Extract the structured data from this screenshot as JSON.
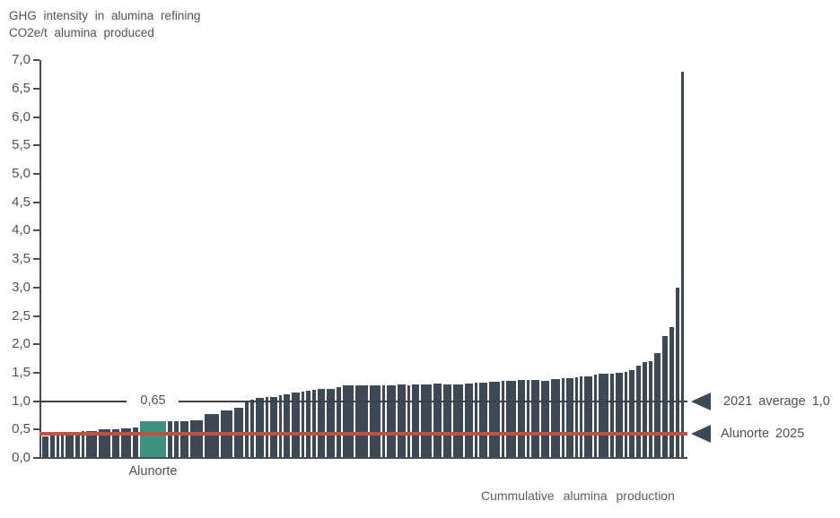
{
  "title": {
    "line1": "GHG intensity in alumina refining",
    "line2": "CO2e/t alumina produced"
  },
  "chart_data": {
    "type": "bar",
    "title": "GHG intensity in alumina refining",
    "subtitle": "CO2e/t alumina produced",
    "xlabel": "Cummulative alumina production",
    "ylabel": "CO2e/t alumina produced",
    "ylim": [
      0,
      7
    ],
    "ytick_step": 0.5,
    "ytick_labels": [
      "7,0",
      "6,5",
      "6,0",
      "5,5",
      "5,0",
      "4,5",
      "4,0",
      "3,5",
      "3,0",
      "2,5",
      "2,0",
      "1,5",
      "1,0",
      "0,5",
      "0,0"
    ],
    "x_axis_numeric_ticks": false,
    "grid": false,
    "legend_position": "none",
    "bar_color": "#3e4956",
    "highlight": {
      "label": "Alunorte",
      "value_label": "0,65",
      "value": 0.65,
      "color": "#3f9183"
    },
    "reference_lines": [
      {
        "name": "average-2021",
        "label": "2021 average 1,0",
        "value": 1.0,
        "color": "#39414b"
      },
      {
        "name": "alunorte-2025",
        "label": "Alunorte 2025",
        "value": 0.43,
        "color": "#bf5240"
      }
    ],
    "bars": [
      {
        "w": 7,
        "v": 0.38
      },
      {
        "w": 5,
        "v": 0.41
      },
      {
        "w": 3,
        "v": 0.42
      },
      {
        "w": 3,
        "v": 0.43
      },
      {
        "w": 9,
        "v": 0.45
      },
      {
        "w": 5,
        "v": 0.46
      },
      {
        "w": 3,
        "v": 0.47
      },
      {
        "w": 12,
        "v": 0.48
      },
      {
        "w": 13,
        "v": 0.5
      },
      {
        "w": 8,
        "v": 0.51
      },
      {
        "w": 11,
        "v": 0.52
      },
      {
        "w": 6,
        "v": 0.54
      },
      {
        "w": 29,
        "v": 0.65,
        "highlight": true
      },
      {
        "w": 5,
        "v": 0.64
      },
      {
        "w": 5,
        "v": 0.64
      },
      {
        "w": 9,
        "v": 0.65
      },
      {
        "w": 14,
        "v": 0.66
      },
      {
        "w": 16,
        "v": 0.77
      },
      {
        "w": 13,
        "v": 0.84
      },
      {
        "w": 10,
        "v": 0.88
      },
      {
        "w": 4,
        "v": 1.0
      },
      {
        "w": 4,
        "v": 1.02
      },
      {
        "w": 9,
        "v": 1.05
      },
      {
        "w": 3,
        "v": 1.07
      },
      {
        "w": 8,
        "v": 1.08
      },
      {
        "w": 3,
        "v": 1.1
      },
      {
        "w": 7,
        "v": 1.12
      },
      {
        "w": 9,
        "v": 1.15
      },
      {
        "w": 3,
        "v": 1.17
      },
      {
        "w": 5,
        "v": 1.18
      },
      {
        "w": 4,
        "v": 1.2
      },
      {
        "w": 8,
        "v": 1.21
      },
      {
        "w": 9,
        "v": 1.22
      },
      {
        "w": 5,
        "v": 1.25
      },
      {
        "w": 12,
        "v": 1.27
      },
      {
        "w": 14,
        "v": 1.27
      },
      {
        "w": 12,
        "v": 1.27
      },
      {
        "w": 3,
        "v": 1.28
      },
      {
        "w": 10,
        "v": 1.28
      },
      {
        "w": 9,
        "v": 1.3
      },
      {
        "w": 3,
        "v": 1.28
      },
      {
        "w": 8,
        "v": 1.3
      },
      {
        "w": 12,
        "v": 1.3
      },
      {
        "w": 9,
        "v": 1.31
      },
      {
        "w": 9,
        "v": 1.29
      },
      {
        "w": 11,
        "v": 1.3
      },
      {
        "w": 9,
        "v": 1.31
      },
      {
        "w": 3,
        "v": 1.32
      },
      {
        "w": 9,
        "v": 1.33
      },
      {
        "w": 12,
        "v": 1.34
      },
      {
        "w": 3,
        "v": 1.35
      },
      {
        "w": 11,
        "v": 1.36
      },
      {
        "w": 8,
        "v": 1.37
      },
      {
        "w": 3,
        "v": 1.37
      },
      {
        "w": 9,
        "v": 1.38
      },
      {
        "w": 9,
        "v": 1.36
      },
      {
        "w": 10,
        "v": 1.39
      },
      {
        "w": 3,
        "v": 1.4
      },
      {
        "w": 8,
        "v": 1.41
      },
      {
        "w": 3,
        "v": 1.42
      },
      {
        "w": 3,
        "v": 1.43
      },
      {
        "w": 9,
        "v": 1.44
      },
      {
        "w": 3,
        "v": 1.46
      },
      {
        "w": 11,
        "v": 1.48
      },
      {
        "w": 4,
        "v": 1.49
      },
      {
        "w": 8,
        "v": 1.5
      },
      {
        "w": 3,
        "v": 1.52
      },
      {
        "w": 6,
        "v": 1.55
      },
      {
        "w": 5,
        "v": 1.62
      },
      {
        "w": 5,
        "v": 1.68
      },
      {
        "w": 4,
        "v": 1.71
      },
      {
        "w": 7,
        "v": 1.84
      },
      {
        "w": 6,
        "v": 2.14
      },
      {
        "w": 5,
        "v": 2.3
      },
      {
        "w": 4,
        "v": 2.99
      },
      {
        "w": 3,
        "v": 6.8
      }
    ]
  },
  "colors": {
    "bar": "#3e4956",
    "highlight_bar": "#3f9183",
    "average_line": "#39414b",
    "target_line": "#bf5240",
    "axis": "#474d55",
    "text": "#4e5257"
  }
}
